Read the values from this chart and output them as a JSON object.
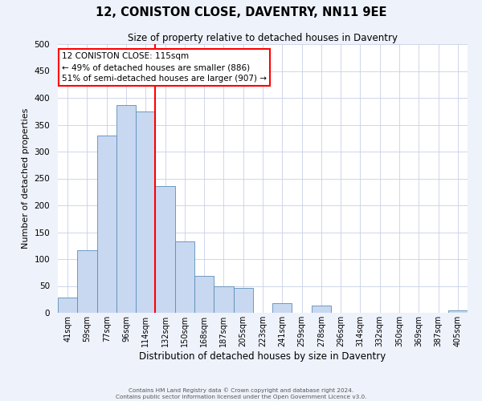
{
  "title": "12, CONISTON CLOSE, DAVENTRY, NN11 9EE",
  "subtitle": "Size of property relative to detached houses in Daventry",
  "xlabel": "Distribution of detached houses by size in Daventry",
  "ylabel": "Number of detached properties",
  "bar_labels": [
    "41sqm",
    "59sqm",
    "77sqm",
    "96sqm",
    "114sqm",
    "132sqm",
    "150sqm",
    "168sqm",
    "187sqm",
    "205sqm",
    "223sqm",
    "241sqm",
    "259sqm",
    "278sqm",
    "296sqm",
    "314sqm",
    "332sqm",
    "350sqm",
    "369sqm",
    "387sqm",
    "405sqm"
  ],
  "bar_values": [
    28,
    116,
    330,
    386,
    374,
    236,
    133,
    68,
    50,
    46,
    0,
    18,
    0,
    13,
    0,
    0,
    0,
    0,
    0,
    0,
    5
  ],
  "bar_color": "#c8d8f0",
  "bar_edge_color": "#5b8db8",
  "vline_x_index": 4,
  "vline_color": "red",
  "ylim": [
    0,
    500
  ],
  "yticks": [
    0,
    50,
    100,
    150,
    200,
    250,
    300,
    350,
    400,
    450,
    500
  ],
  "annotation_title": "12 CONISTON CLOSE: 115sqm",
  "annotation_line1": "← 49% of detached houses are smaller (886)",
  "annotation_line2": "51% of semi-detached houses are larger (907) →",
  "annotation_box_color": "red",
  "footer_line1": "Contains HM Land Registry data © Crown copyright and database right 2024.",
  "footer_line2": "Contains public sector information licensed under the Open Government Licence v3.0.",
  "bg_color": "#eef2fb",
  "plot_bg_color": "#ffffff",
  "grid_color": "#c8d0e8"
}
